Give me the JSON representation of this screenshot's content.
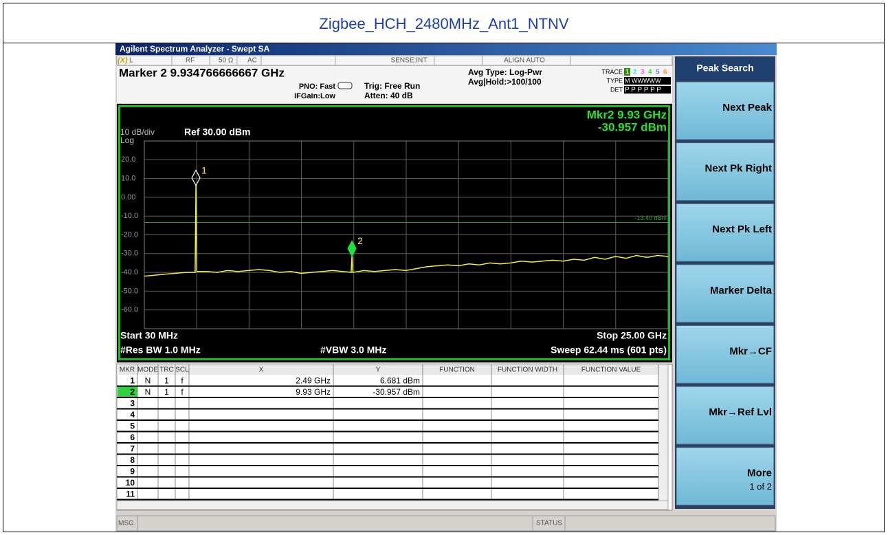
{
  "page_title": "Zigbee_HCH_2480MHz_Ant1_NTNV",
  "window_title": "Agilent Spectrum Analyzer - Swept SA",
  "status_row": [
    "L",
    "RF",
    "50 Ω",
    "AC",
    "SENSE:INT",
    "ALIGN AUTO"
  ],
  "settings": {
    "marker": "Marker 2 9.934766666667 GHz",
    "pno": "PNO: Fast",
    "ifgain": "IFGain:Low",
    "trig": "Trig: Free Run",
    "atten": "Atten: 40 dB",
    "avg_type": "Avg Type: Log-Pwr",
    "avg_hold": "Avg|Hold:>100/100",
    "trace_label": "TRACE",
    "trace_numbers": [
      "1",
      "2",
      "3",
      "4",
      "5",
      "6"
    ],
    "type_label": "TYPE",
    "type_value": "M WWWWW",
    "det_label": "DET",
    "det_value": "P P P P P P"
  },
  "chart_data": {
    "type": "line",
    "readout": [
      "Mkr2 9.93 GHz",
      "-30.957 dBm"
    ],
    "scale": "10 dB/div",
    "scale_type": "Log",
    "ref_level": "Ref 30.00 dBm",
    "color": "#f0f040",
    "xlim": [
      0.03,
      25
    ],
    "ylim": [
      -70,
      30
    ],
    "yticks": [
      {
        "value": 20,
        "label": "20.0"
      },
      {
        "value": 10,
        "label": "10.0"
      },
      {
        "value": 0,
        "label": "0.00"
      },
      {
        "value": -10,
        "label": "-10.0"
      },
      {
        "value": -20,
        "label": "-20.0"
      },
      {
        "value": -30,
        "label": "-30.0"
      },
      {
        "value": -40,
        "label": "-40.0"
      },
      {
        "value": -50,
        "label": "-50.0"
      },
      {
        "value": -60,
        "label": "-60.0"
      }
    ],
    "grid": true,
    "display_line": {
      "value": -13.4,
      "label": "-13.40 dBm",
      "color": "#2ea02e"
    },
    "x": [
      0.03,
      0.5,
      1.0,
      1.5,
      2.0,
      2.45,
      2.49,
      2.53,
      3.0,
      3.5,
      4.0,
      4.5,
      5.0,
      5.5,
      6.0,
      6.5,
      7.0,
      7.5,
      8.0,
      8.5,
      9.0,
      9.5,
      9.89,
      9.93,
      9.97,
      10.5,
      11.0,
      11.5,
      12.0,
      12.5,
      13.0,
      13.5,
      14.0,
      14.5,
      15.0,
      15.5,
      16.0,
      16.5,
      17.0,
      17.5,
      18.0,
      18.5,
      19.0,
      19.5,
      20.0,
      20.5,
      21.0,
      21.5,
      22.0,
      22.5,
      23.0,
      23.5,
      24.0,
      24.5,
      25.0
    ],
    "values": [
      -42,
      -41.5,
      -41,
      -40.5,
      -40,
      -40,
      6.681,
      -39.5,
      -39.5,
      -40,
      -39,
      -39.5,
      -39,
      -38.5,
      -39,
      -40,
      -39.5,
      -40.5,
      -40,
      -39.5,
      -39,
      -39.5,
      -40,
      -30.957,
      -40,
      -39,
      -39.5,
      -39,
      -38.5,
      -39,
      -38,
      -37,
      -36.5,
      -36,
      -36.5,
      -35.5,
      -36,
      -35,
      -35.5,
      -35,
      -34,
      -34.5,
      -34,
      -33.5,
      -34,
      -33,
      -33.5,
      -32,
      -33,
      -31.5,
      -32.5,
      -31,
      -32,
      -31,
      -31.5
    ],
    "markers": [
      {
        "label": "1",
        "x": 2.49,
        "y": 6.681
      },
      {
        "label": "2",
        "x": 9.93,
        "y": -30.957
      }
    ],
    "footer": {
      "start": "Start 30 MHz",
      "stop": "Stop 25.00 GHz",
      "rbw": "#Res BW 1.0 MHz",
      "vbw": "#VBW 3.0 MHz",
      "sweep": "Sweep 62.44 ms (601 pts)"
    }
  },
  "marker_table": {
    "headers": [
      "MKR",
      "MODE",
      "TRC",
      "SCL",
      "X",
      "Y",
      "FUNCTION",
      "FUNCTION WIDTH",
      "FUNCTION VALUE"
    ],
    "rows": [
      {
        "mkr": "1",
        "mode": "N",
        "trc": "1",
        "scl": "f",
        "x": "2.49 GHz",
        "y": "6.681 dBm"
      },
      {
        "mkr": "2",
        "mode": "N",
        "trc": "1",
        "scl": "f",
        "x": "9.93 GHz",
        "y": "-30.957 dBm"
      },
      {
        "mkr": "3"
      },
      {
        "mkr": "4"
      },
      {
        "mkr": "5"
      },
      {
        "mkr": "6"
      },
      {
        "mkr": "7"
      },
      {
        "mkr": "8"
      },
      {
        "mkr": "9"
      },
      {
        "mkr": "10"
      },
      {
        "mkr": "11"
      }
    ]
  },
  "softkeys": {
    "title": "Peak Search",
    "keys": [
      "Next Peak",
      "Next Pk Right",
      "Next Pk Left",
      "Marker Delta",
      "Mkr→CF",
      "Mkr→Ref Lvl",
      "More"
    ],
    "more_page": "1 of 2"
  },
  "bottom_bar": {
    "msg": "MSG",
    "status": "STATUS"
  }
}
